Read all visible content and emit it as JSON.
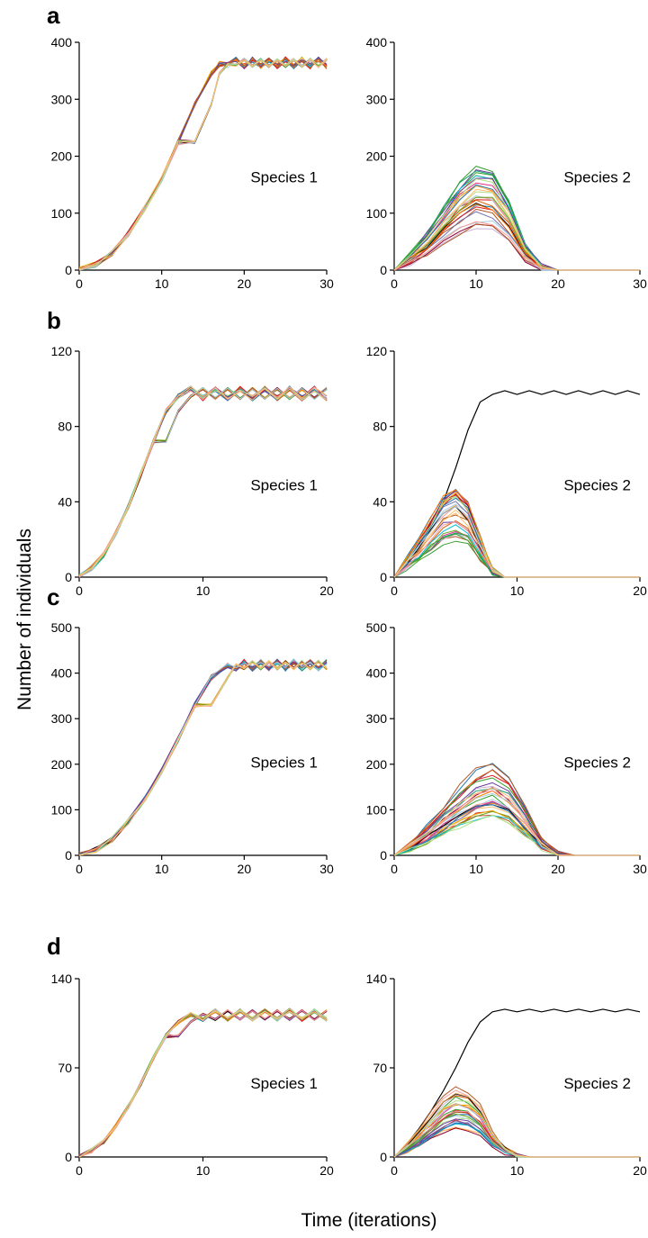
{
  "figure": {
    "ylabel": "Number of individuals",
    "xlabel": "Time (iterations)"
  },
  "chart_data": [
    {
      "panel": "a",
      "title": "Species 1",
      "type": "line",
      "xlim": [
        0,
        30
      ],
      "ylim": [
        0,
        400
      ],
      "xticks": [
        0,
        10,
        20,
        30
      ],
      "yticks": [
        0,
        100,
        200,
        300,
        400
      ],
      "description_series": "many replicate runs; logistic growth to ~365, then oscillating plateau",
      "series": [
        {
          "x": [
            0,
            2,
            4,
            6,
            8,
            10,
            12,
            14,
            16,
            17,
            18,
            19,
            20,
            21,
            22,
            23,
            24,
            25,
            26,
            27,
            28,
            29,
            30
          ],
          "y": [
            0,
            10,
            30,
            65,
            110,
            160,
            225,
            290,
            345,
            362,
            360,
            370,
            358,
            370,
            358,
            370,
            358,
            370,
            358,
            370,
            358,
            370,
            358
          ]
        }
      ]
    },
    {
      "panel": "a",
      "title": "Species 2",
      "type": "line",
      "xlim": [
        0,
        30
      ],
      "ylim": [
        0,
        400
      ],
      "xticks": [
        0,
        10,
        20,
        30
      ],
      "yticks": [
        0,
        100,
        200,
        300,
        400
      ],
      "series": [
        {
          "x": [
            0,
            2,
            4,
            6,
            8,
            10,
            12,
            14,
            16,
            18,
            20,
            30
          ],
          "y": [
            0,
            20,
            45,
            75,
            105,
            125,
            120,
            85,
            30,
            5,
            0,
            0
          ]
        }
      ]
    },
    {
      "panel": "b",
      "title": "Species 1",
      "type": "line",
      "xlim": [
        0,
        20
      ],
      "ylim": [
        0,
        120
      ],
      "xticks": [
        0,
        10,
        20
      ],
      "yticks": [
        0,
        40,
        80,
        120
      ],
      "series": [
        {
          "x": [
            0,
            1,
            2,
            3,
            4,
            5,
            6,
            7,
            8,
            9,
            10,
            11,
            12,
            13,
            14,
            15,
            16,
            17,
            18,
            19,
            20
          ],
          "y": [
            0,
            5,
            12,
            24,
            38,
            55,
            72,
            88,
            96,
            100,
            95,
            100,
            95,
            100,
            95,
            100,
            95,
            100,
            95,
            100,
            95
          ]
        }
      ]
    },
    {
      "panel": "b",
      "title": "Species 2",
      "type": "line",
      "xlim": [
        0,
        20
      ],
      "ylim": [
        0,
        120
      ],
      "xticks": [
        0,
        10,
        20
      ],
      "yticks": [
        0,
        40,
        80,
        120
      ],
      "series": [
        {
          "x": [
            0,
            1,
            2,
            3,
            4,
            5,
            6,
            7,
            8,
            9,
            10,
            11,
            12,
            13,
            14,
            15,
            16,
            17,
            18,
            19,
            20
          ],
          "y": [
            0,
            9,
            18,
            28,
            40,
            58,
            78,
            93,
            97,
            99,
            97,
            99,
            97,
            99,
            97,
            99,
            97,
            99,
            97,
            99,
            97
          ]
        },
        {
          "x": [
            0,
            1,
            2,
            3,
            4,
            5,
            6,
            7,
            8,
            9,
            10,
            20
          ],
          "y": [
            0,
            7,
            14,
            22,
            30,
            33,
            28,
            15,
            3,
            0,
            0,
            0
          ]
        }
      ]
    },
    {
      "panel": "c",
      "title": "Species 1",
      "type": "line",
      "xlim": [
        0,
        30
      ],
      "ylim": [
        0,
        500
      ],
      "xticks": [
        0,
        10,
        20,
        30
      ],
      "yticks": [
        0,
        100,
        200,
        300,
        400,
        500
      ],
      "series": [
        {
          "x": [
            0,
            2,
            4,
            6,
            8,
            10,
            12,
            14,
            16,
            18,
            19,
            20,
            21,
            22,
            23,
            24,
            25,
            26,
            27,
            28,
            29,
            30
          ],
          "y": [
            0,
            12,
            35,
            75,
            125,
            185,
            255,
            330,
            390,
            418,
            410,
            425,
            410,
            425,
            410,
            425,
            410,
            425,
            410,
            425,
            410,
            425
          ]
        }
      ]
    },
    {
      "panel": "c",
      "title": "Species 2",
      "type": "line",
      "xlim": [
        0,
        30
      ],
      "ylim": [
        0,
        500
      ],
      "xticks": [
        0,
        10,
        20,
        30
      ],
      "yticks": [
        0,
        100,
        200,
        300,
        400,
        500
      ],
      "series": [
        {
          "x": [
            0,
            2,
            4,
            6,
            8,
            10,
            12,
            14,
            16,
            18,
            20,
            22,
            30
          ],
          "y": [
            0,
            20,
            45,
            75,
            105,
            130,
            140,
            120,
            75,
            25,
            3,
            0,
            0
          ]
        }
      ]
    },
    {
      "panel": "d",
      "title": "Species 1",
      "type": "line",
      "xlim": [
        0,
        20
      ],
      "ylim": [
        0,
        140
      ],
      "xticks": [
        0,
        10,
        20
      ],
      "yticks": [
        0,
        70,
        140
      ],
      "series": [
        {
          "x": [
            0,
            1,
            2,
            3,
            4,
            5,
            6,
            7,
            8,
            9,
            10,
            11,
            12,
            13,
            14,
            15,
            16,
            17,
            18,
            19,
            20
          ],
          "y": [
            0,
            5,
            12,
            25,
            40,
            58,
            78,
            95,
            106,
            112,
            108,
            115,
            108,
            115,
            108,
            115,
            108,
            115,
            108,
            115,
            108
          ]
        }
      ]
    },
    {
      "panel": "d",
      "title": "Species 2",
      "type": "line",
      "xlim": [
        0,
        20
      ],
      "ylim": [
        0,
        140
      ],
      "xticks": [
        0,
        10,
        20
      ],
      "yticks": [
        0,
        70,
        140
      ],
      "series": [
        {
          "x": [
            0,
            1,
            2,
            3,
            4,
            5,
            6,
            7,
            8,
            9,
            10,
            11,
            12,
            13,
            14,
            15,
            16,
            17,
            18,
            19,
            20
          ],
          "y": [
            0,
            10,
            22,
            36,
            52,
            70,
            90,
            106,
            114,
            116,
            114,
            116,
            114,
            116,
            114,
            116,
            114,
            116,
            114,
            116,
            114
          ]
        },
        {
          "x": [
            0,
            1,
            2,
            3,
            4,
            5,
            6,
            7,
            8,
            9,
            10,
            11,
            20
          ],
          "y": [
            0,
            7,
            15,
            24,
            33,
            38,
            36,
            28,
            14,
            5,
            1,
            0,
            0
          ]
        }
      ]
    }
  ],
  "style": {
    "palette": [
      "#e31a1c",
      "#1f78b4",
      "#33a02c",
      "#ff7f00",
      "#6a3d9a",
      "#b15928",
      "#a6cee3",
      "#fb9a99",
      "#b2df8a",
      "#fdbf6f",
      "#cab2d6",
      "#e7298a",
      "#1b9e77",
      "#d95f02",
      "#7570b3",
      "#66a61e",
      "#e6ab02",
      "#000000",
      "#8b0033",
      "#00bcd4"
    ],
    "black": "#000000"
  }
}
